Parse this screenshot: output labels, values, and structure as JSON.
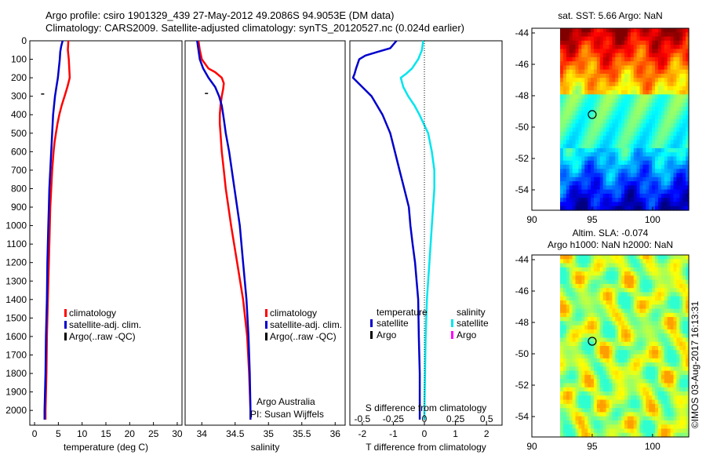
{
  "titles": {
    "line1": "Argo profile: csiro 1901329_439 27-May-2012 49.2086S 94.9053E (DM data)",
    "line2": "Climatology: CARS2009. Satellite-adjusted climatology: synTS_20120527.nc (0.024d earlier)"
  },
  "chart_data": [
    {
      "type": "line",
      "name": "temperature-panel",
      "xlabel": "temperature (deg C)",
      "xlim": [
        -1,
        31
      ],
      "ylim": [
        0,
        2080
      ],
      "yinvert": true,
      "xticks": [
        "0",
        "5",
        "10",
        "15",
        "20",
        "25",
        "30"
      ],
      "xtick_values": [
        0,
        5,
        10,
        15,
        20,
        25,
        30
      ],
      "yticks": [
        0,
        100,
        200,
        300,
        400,
        500,
        600,
        700,
        800,
        900,
        1000,
        1100,
        1200,
        1300,
        1400,
        1500,
        1600,
        1700,
        1800,
        1900,
        2000
      ],
      "legend": [
        "climatology",
        "satellite-adj. clim.",
        "Argo(..raw -QC)"
      ],
      "series": [
        {
          "name": "climatology",
          "color": "#ff0000",
          "depth": [
            0,
            50,
            100,
            150,
            200,
            250,
            300,
            350,
            400,
            450,
            500,
            550,
            600,
            700,
            800,
            900,
            1000,
            1200,
            1400,
            1600,
            1800,
            2000,
            2050
          ],
          "values": [
            7.1,
            7.0,
            7.2,
            7.3,
            7.4,
            6.9,
            6.3,
            5.7,
            5.2,
            4.8,
            4.5,
            4.2,
            4.0,
            3.7,
            3.5,
            3.3,
            3.2,
            3.0,
            2.8,
            2.6,
            2.5,
            2.3,
            2.3
          ]
        },
        {
          "name": "satellite-adj. clim.",
          "color": "#0000cc",
          "depth": [
            0,
            30,
            60,
            100,
            150,
            200,
            250,
            300,
            350,
            400,
            450,
            500,
            550,
            600,
            700,
            800,
            900,
            1000,
            1200,
            1400,
            1600,
            1800,
            2000,
            2050
          ],
          "values": [
            5.9,
            5.6,
            5.4,
            5.3,
            5.1,
            4.9,
            4.6,
            4.3,
            4.1,
            3.9,
            3.8,
            3.7,
            3.6,
            3.5,
            3.3,
            3.1,
            3.0,
            2.9,
            2.7,
            2.6,
            2.4,
            2.3,
            2.1,
            2.1
          ]
        }
      ],
      "marks": [
        {
          "x": 1.7,
          "y": 288
        }
      ]
    },
    {
      "type": "line",
      "name": "salinity-panel",
      "xlabel": "salinity",
      "xlim": [
        33.75,
        36.15
      ],
      "ylim": [
        0,
        2080
      ],
      "yinvert": true,
      "xticks": [
        "34",
        "34.5",
        "35",
        "35.5",
        "36"
      ],
      "xtick_values": [
        34,
        34.5,
        35,
        35.5,
        36
      ],
      "legend": [
        "climatology",
        "satellite-adj. clim.",
        "Argo(..raw -QC)"
      ],
      "annotations": [
        "Argo Australia",
        "PI: Susan Wijffels"
      ],
      "series": [
        {
          "name": "climatology",
          "color": "#ff0000",
          "depth": [
            0,
            50,
            100,
            150,
            170,
            200,
            230,
            260,
            300,
            350,
            400,
            450,
            500,
            600,
            700,
            800,
            900,
            1000,
            1200,
            1400,
            1600,
            1800,
            2000,
            2050
          ],
          "values": [
            33.95,
            33.97,
            34.0,
            34.1,
            34.2,
            34.3,
            34.33,
            34.32,
            34.3,
            34.28,
            34.27,
            34.27,
            34.28,
            34.3,
            34.33,
            34.36,
            34.4,
            34.44,
            34.53,
            34.62,
            34.68,
            34.71,
            34.73,
            34.73
          ]
        },
        {
          "name": "satellite-adj. clim.",
          "color": "#0000cc",
          "depth": [
            0,
            50,
            100,
            150,
            200,
            250,
            300,
            350,
            400,
            450,
            500,
            600,
            700,
            800,
            900,
            1000,
            1200,
            1400,
            1600,
            1800,
            2000,
            2050
          ],
          "values": [
            33.93,
            33.95,
            33.97,
            34.02,
            34.1,
            34.2,
            34.26,
            34.3,
            34.32,
            34.34,
            34.36,
            34.41,
            34.45,
            34.49,
            34.53,
            34.57,
            34.62,
            34.67,
            34.7,
            34.72,
            34.73,
            34.73
          ]
        }
      ],
      "marks": [
        {
          "x": 34.07,
          "y": 285
        }
      ]
    },
    {
      "type": "line",
      "name": "difference-panel",
      "xlabel": "T difference from climatology",
      "top_label": "S difference from climatology",
      "xlim": [
        -2.4,
        2.5
      ],
      "ylim": [
        0,
        2080
      ],
      "yinvert": true,
      "xticks": [
        "-2",
        "-1",
        "0",
        "1",
        "2"
      ],
      "xtick_values": [
        -2,
        -1,
        0,
        1,
        2
      ],
      "sticks": [
        "-0.5",
        "-0.25",
        "0",
        "0.25",
        "0.5"
      ],
      "stick_values": [
        -0.5,
        -0.25,
        0,
        0.25,
        0.5
      ],
      "s_scale": 4,
      "legend_headers": [
        "temperature",
        "salinity"
      ],
      "legend_temperature": [
        "satellite",
        "Argo"
      ],
      "legend_salinity": [
        "satellite",
        "Argo"
      ],
      "colors": {
        "t_sat": "#0000cc",
        "t_argo": "#000000",
        "s_sat": "#00e5ee",
        "s_argo": "#ff00ff"
      },
      "series": [
        {
          "name": "temperature satellite",
          "color": "#0000cc",
          "depth": [
            0,
            40,
            60,
            80,
            100,
            150,
            180,
            200,
            250,
            300,
            400,
            500,
            600,
            700,
            800,
            900,
            1000,
            1100,
            1200,
            1300,
            1400,
            1600,
            1800,
            2000,
            2050
          ],
          "values": [
            -0.9,
            -1.1,
            -1.5,
            -1.9,
            -2.1,
            -2.2,
            -2.25,
            -2.3,
            -2.0,
            -1.7,
            -1.35,
            -1.1,
            -0.95,
            -0.8,
            -0.65,
            -0.5,
            -0.45,
            -0.38,
            -0.3,
            -0.25,
            -0.2,
            -0.18,
            -0.15,
            -0.15,
            -0.15
          ]
        },
        {
          "name": "salinity satellite",
          "color": "#00e5ee",
          "depth": [
            0,
            50,
            100,
            150,
            180,
            200,
            250,
            300,
            350,
            400,
            500,
            600,
            700,
            800,
            900,
            1000,
            1200,
            1400,
            1600,
            1800,
            2000,
            2050
          ],
          "values": [
            -0.01,
            -0.02,
            -0.05,
            -0.1,
            -0.15,
            -0.19,
            -0.17,
            -0.13,
            -0.08,
            -0.04,
            0.03,
            0.06,
            0.08,
            0.08,
            0.07,
            0.06,
            0.04,
            0.02,
            0.01,
            0.005,
            0.0,
            0.0
          ]
        }
      ]
    }
  ],
  "maps": {
    "sst": {
      "title": "sat. SST: 5.66 Argo: NaN",
      "yticks": [
        "-44",
        "-46",
        "-48",
        "-50",
        "-52",
        "-54"
      ],
      "ytick_values": [
        -44,
        -46,
        -48,
        -50,
        -52,
        -54
      ],
      "xticks": [
        "90",
        "95",
        "100"
      ],
      "xtick_values": [
        90,
        95,
        100
      ],
      "lon_range": [
        90,
        103
      ],
      "lat_range": [
        -55.3,
        -43.7
      ],
      "marker": {
        "lon": 95,
        "lat": -49.2
      }
    },
    "sla": {
      "title1": "Altim. SLA: -0.074",
      "title2": "Argo h1000: NaN h2000: NaN",
      "yticks": [
        "-44",
        "-46",
        "-48",
        "-50",
        "-52",
        "-54"
      ],
      "ytick_values": [
        -44,
        -46,
        -48,
        -50,
        -52,
        -54
      ],
      "xticks": [
        "90",
        "95",
        "100"
      ],
      "xtick_values": [
        90,
        95,
        100
      ],
      "lon_range": [
        90,
        103
      ],
      "lat_range": [
        -55.3,
        -43.7
      ],
      "marker": {
        "lon": 95,
        "lat": -49.2
      }
    }
  },
  "credit": "©IMOS 03-Aug-2017 16:13:31"
}
